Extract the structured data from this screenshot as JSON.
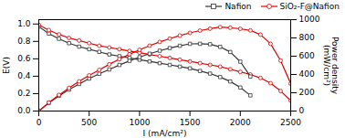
{
  "chart_data": {
    "type": "line",
    "title": "",
    "xlabel": "I (mA/cm²)",
    "ylabel": "E(V)",
    "y2label": "Power density\n(mW/cm²)",
    "xlim": [
      0,
      2500
    ],
    "xticks": [
      0,
      500,
      1000,
      1500,
      2000,
      2500
    ],
    "ylim": [
      0.0,
      1.05
    ],
    "yticks": [
      {
        "value": 0.0,
        "label": "0.0"
      },
      0.2,
      0.4,
      0.6,
      0.8,
      {
        "value": 1.0,
        "label": "1.0"
      }
    ],
    "y2lim": [
      0,
      1000
    ],
    "y2ticks": [
      0,
      200,
      400,
      600,
      800,
      1000
    ],
    "grid": false,
    "legend": "upper right",
    "series": [
      {
        "name": "Nafion",
        "color": "#333333",
        "marker": "square",
        "axis": "y",
        "x": [
          0,
          100,
          200,
          300,
          400,
          500,
          600,
          700,
          800,
          900,
          1000,
          1100,
          1200,
          1300,
          1400,
          1500,
          1600,
          1700,
          1800,
          1900,
          2000,
          2100
        ],
        "values": [
          0.97,
          0.89,
          0.83,
          0.78,
          0.74,
          0.71,
          0.68,
          0.65,
          0.63,
          0.61,
          0.59,
          0.57,
          0.55,
          0.53,
          0.51,
          0.49,
          0.46,
          0.43,
          0.39,
          0.34,
          0.27,
          0.18
        ]
      },
      {
        "name": "SiO₂-F@Nafion",
        "color": "#dd0000",
        "marker": "circle",
        "axis": "y",
        "x": [
          0,
          100,
          200,
          300,
          400,
          500,
          600,
          700,
          800,
          900,
          1000,
          1100,
          1200,
          1300,
          1400,
          1500,
          1600,
          1700,
          1800,
          1900,
          2000,
          2100,
          2200,
          2300,
          2400,
          2500
        ],
        "values": [
          0.99,
          0.93,
          0.88,
          0.84,
          0.81,
          0.78,
          0.75,
          0.73,
          0.71,
          0.69,
          0.67,
          0.65,
          0.63,
          0.61,
          0.59,
          0.57,
          0.55,
          0.53,
          0.51,
          0.48,
          0.45,
          0.42,
          0.38,
          0.32,
          0.23,
          0.12
        ]
      },
      {
        "color": "#333333",
        "marker": "square",
        "axis": "y2",
        "x": [
          0,
          100,
          200,
          300,
          400,
          500,
          600,
          700,
          800,
          900,
          1000,
          1100,
          1200,
          1300,
          1400,
          1500,
          1600,
          1700,
          1800,
          1900,
          2000,
          2100
        ],
        "values": [
          0,
          89,
          166,
          234,
          296,
          355,
          408,
          455,
          504,
          549,
          590,
          627,
          660,
          689,
          714,
          735,
          736,
          731,
          702,
          646,
          540,
          378
        ]
      },
      {
        "color": "#dd0000",
        "marker": "circle",
        "axis": "y2",
        "x": [
          0,
          100,
          200,
          300,
          400,
          500,
          600,
          700,
          800,
          900,
          1000,
          1100,
          1200,
          1300,
          1400,
          1500,
          1600,
          1700,
          1800,
          1900,
          2000,
          2100,
          2200,
          2300,
          2400,
          2500
        ],
        "values": [
          0,
          93,
          176,
          252,
          324,
          390,
          450,
          511,
          568,
          621,
          670,
          715,
          756,
          793,
          826,
          855,
          880,
          901,
          918,
          912,
          900,
          882,
          836,
          736,
          552,
          300
        ]
      }
    ]
  }
}
